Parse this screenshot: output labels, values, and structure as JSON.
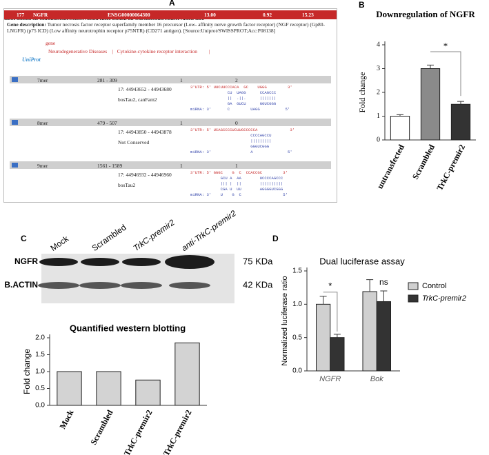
{
  "panel_labels": [
    "A",
    "B",
    "C",
    "D"
  ],
  "panel_a": {
    "header": [
      "177",
      "NGFR",
      "ENSG00000064300",
      "13.00",
      "0.92",
      "15.23"
    ],
    "gene_description_label": "Gene description:",
    "gene_description": "Tumor necrosis factor receptor superfamily member 16 precursor (Low- affinity nerve growth factor receptor) (NGF receptor) (Gp80-LNGFR) (p75 ICD) (Low affinity neurotrophin receptor p75NTR) (CD271 antigen). [Source:Uniprot/SWISSPROT;Acc:P08138]",
    "pubmed_label": "PubMed Links:",
    "pubmed": "gene",
    "kegg_label": "KEGG Pathways:",
    "kegg": [
      "Neurodegenerative Diseases",
      "|",
      "Cytokine-cytokine receptor interaction",
      "|"
    ],
    "links_label": "Links:",
    "links_logo": "UniProt",
    "columns": [
      "Binding Type",
      "UTR position",
      "Score",
      "Conservation",
      "Also predicted by"
    ],
    "rows": [
      {
        "binding_type": "7mer",
        "utr_position": "281 - 309",
        "score": "1",
        "conservation": "2",
        "position_label": "Position on Chromosome",
        "position": "17: 44943652 - 44943680",
        "conservation_info_label": "Conservation Info",
        "conservation_info": "bosTau2, canFam2",
        "alignment": [
          "3'UTR: 5' UUCUUCCCACA  GC    UGGG         3'",
          "                CU  UAGG      CCAGCCC",
          "                ||  .||.      |||||||",
          "                GA  GUCU      GGUCGGG",
          "miRNA: 3'       C         UAGG           5'"
        ]
      },
      {
        "binding_type": "8mer",
        "utr_position": "479 - 507",
        "score": "1",
        "conservation": "0",
        "position_label": "Position on Chromosome",
        "position": "17: 44943850 - 44943878",
        "conservation_info_label": "Conservation Info",
        "conservation_info": "Not Conserved",
        "alignment": [
          "3'UTR: 5' UCAGCCCCUCUUGCCCCCA              3'",
          "                          CCCCAGCCU",
          "                          |||||||||",
          "                          GGGUCGGG",
          "miRNA: 3'                 A               5'"
        ]
      },
      {
        "binding_type": "9mer",
        "utr_position": "1561 - 1589",
        "score": "1",
        "conservation": "1",
        "position_label": "Position on Chromosome",
        "position": "17: 44946932 - 44946960",
        "conservation_info_label": "Conservation Info",
        "conservation_info": "bosTau2",
        "alignment": [
          "3'UTR: 5' GGGC    G  C  CCACCGC         3'",
          "             GCU A  AA        UCCCCAGCCC",
          "             ||| |  ||        ||||||||||",
          "             CGA U  UU        AGGGGUCGGG",
          "miRNA: 3'    U    G  C                  5'"
        ]
      }
    ]
  },
  "blot": {
    "rows": [
      "NGFR",
      "B.ACTIN"
    ],
    "sizes": [
      "75 KDa",
      "42 KDa"
    ]
  },
  "chart_data": [
    {
      "type": "bar",
      "title": "Downregulation of NGFR",
      "y_label": "Fold change",
      "categories": [
        "untransfected",
        "Scrambled",
        "TrkC-premir2"
      ],
      "values": [
        1.0,
        3.0,
        1.5
      ],
      "errors": [
        0.06,
        0.15,
        0.12
      ],
      "colors": [
        "#ffffff",
        "#8a8a8a",
        "#333333"
      ],
      "ylim": [
        0,
        4
      ],
      "yticks": [
        0,
        1,
        2,
        3,
        4
      ],
      "annotations": [
        "*"
      ]
    },
    {
      "type": "bar",
      "title": "Quantified western blotting",
      "y_label": "Fold change",
      "categories": [
        "Mock",
        "Scrambled",
        "TrkC-premir2",
        "anti-TrkC-premir2"
      ],
      "values": [
        1.0,
        1.0,
        0.75,
        1.85
      ],
      "color": "#d3d3d3",
      "ylim": [
        0,
        2.0
      ],
      "yticks": [
        {
          "value": 0,
          "label": "0.0"
        },
        {
          "value": 0.5,
          "label": "0.5"
        },
        {
          "value": 1.0,
          "label": "1.0"
        },
        {
          "value": 1.5,
          "label": "1.5"
        },
        {
          "value": 2.0,
          "label": "2.0"
        }
      ]
    },
    {
      "type": "grouped_bar",
      "title": "Dual luciferase assay",
      "y_label": "Normalized luciferase ratio",
      "categories": [
        "NGFR",
        "Bok"
      ],
      "series": [
        {
          "name": "Control",
          "color": "#d0d0d0",
          "values": [
            1.0,
            1.19
          ],
          "errors": [
            0.12,
            0.18
          ]
        },
        {
          "name": "TrkC-premir2",
          "color": "#333333",
          "values": [
            0.5,
            1.04
          ],
          "errors": [
            0.05,
            0.16
          ]
        }
      ],
      "ylim": [
        0,
        1.5
      ],
      "yticks": [
        {
          "value": 0,
          "label": "0.0"
        },
        {
          "value": 0.5,
          "label": "0.5"
        },
        {
          "value": 1.0,
          "label": "1.0"
        },
        {
          "value": 1.5,
          "label": "1.5"
        }
      ],
      "legend": "right",
      "annotations": [
        "*",
        "ns"
      ]
    }
  ]
}
